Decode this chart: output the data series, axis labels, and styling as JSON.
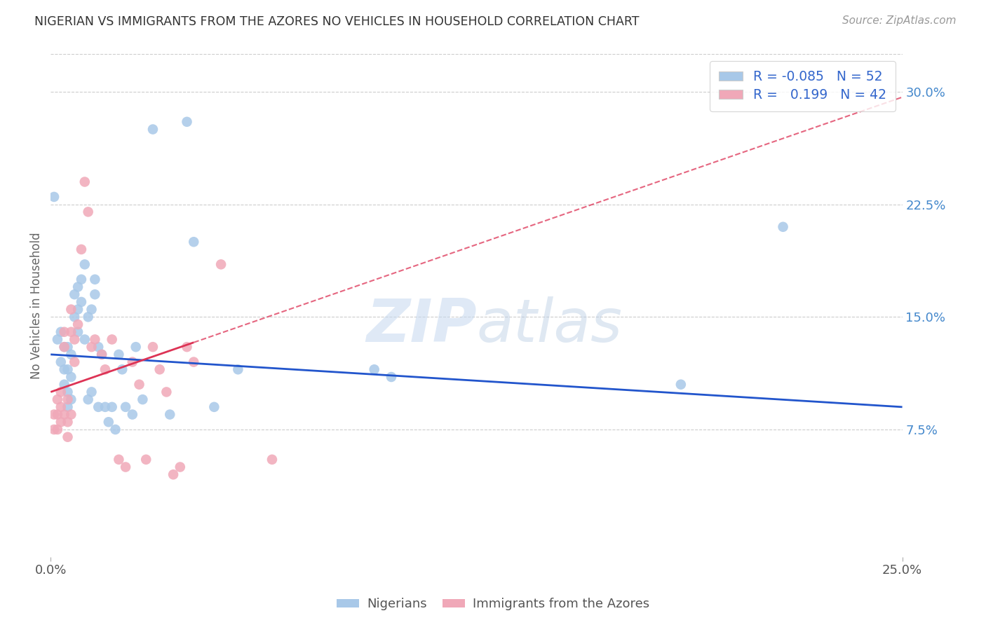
{
  "title": "NIGERIAN VS IMMIGRANTS FROM THE AZORES NO VEHICLES IN HOUSEHOLD CORRELATION CHART",
  "source": "Source: ZipAtlas.com",
  "ylabel": "No Vehicles in Household",
  "ytick_vals": [
    0.075,
    0.15,
    0.225,
    0.3
  ],
  "ytick_labels": [
    "7.5%",
    "15.0%",
    "22.5%",
    "30.0%"
  ],
  "xlim": [
    0.0,
    0.25
  ],
  "ylim": [
    -0.01,
    0.325
  ],
  "legend1_R": "-0.085",
  "legend1_N": "52",
  "legend2_R": "0.199",
  "legend2_N": "42",
  "blue_color": "#a8c8e8",
  "pink_color": "#f0a8b8",
  "blue_line_color": "#2255cc",
  "pink_line_color": "#dd3355",
  "nigerians_x": [
    0.001,
    0.002,
    0.003,
    0.003,
    0.004,
    0.004,
    0.004,
    0.005,
    0.005,
    0.005,
    0.005,
    0.006,
    0.006,
    0.006,
    0.007,
    0.007,
    0.008,
    0.008,
    0.008,
    0.009,
    0.009,
    0.01,
    0.01,
    0.011,
    0.011,
    0.012,
    0.012,
    0.013,
    0.013,
    0.014,
    0.014,
    0.015,
    0.016,
    0.017,
    0.018,
    0.019,
    0.02,
    0.021,
    0.022,
    0.024,
    0.025,
    0.027,
    0.03,
    0.035,
    0.04,
    0.042,
    0.048,
    0.055,
    0.095,
    0.1,
    0.185,
    0.215
  ],
  "nigerians_y": [
    0.23,
    0.135,
    0.14,
    0.12,
    0.13,
    0.115,
    0.105,
    0.13,
    0.115,
    0.1,
    0.09,
    0.125,
    0.11,
    0.095,
    0.165,
    0.15,
    0.17,
    0.155,
    0.14,
    0.175,
    0.16,
    0.185,
    0.135,
    0.15,
    0.095,
    0.155,
    0.1,
    0.175,
    0.165,
    0.13,
    0.09,
    0.125,
    0.09,
    0.08,
    0.09,
    0.075,
    0.125,
    0.115,
    0.09,
    0.085,
    0.13,
    0.095,
    0.275,
    0.085,
    0.28,
    0.2,
    0.09,
    0.115,
    0.115,
    0.11,
    0.105,
    0.21
  ],
  "azores_x": [
    0.001,
    0.001,
    0.002,
    0.002,
    0.002,
    0.003,
    0.003,
    0.003,
    0.004,
    0.004,
    0.004,
    0.005,
    0.005,
    0.005,
    0.006,
    0.006,
    0.006,
    0.007,
    0.007,
    0.008,
    0.009,
    0.01,
    0.011,
    0.012,
    0.013,
    0.015,
    0.016,
    0.018,
    0.02,
    0.022,
    0.024,
    0.026,
    0.028,
    0.03,
    0.032,
    0.034,
    0.036,
    0.038,
    0.04,
    0.042,
    0.05,
    0.065
  ],
  "azores_y": [
    0.085,
    0.075,
    0.095,
    0.085,
    0.075,
    0.1,
    0.09,
    0.08,
    0.14,
    0.13,
    0.085,
    0.095,
    0.08,
    0.07,
    0.155,
    0.14,
    0.085,
    0.135,
    0.12,
    0.145,
    0.195,
    0.24,
    0.22,
    0.13,
    0.135,
    0.125,
    0.115,
    0.135,
    0.055,
    0.05,
    0.12,
    0.105,
    0.055,
    0.13,
    0.115,
    0.1,
    0.045,
    0.05,
    0.13,
    0.12,
    0.185,
    0.055
  ],
  "watermark_zip": "ZIP",
  "watermark_atlas": "atlas",
  "background_color": "#ffffff",
  "grid_color": "#cccccc"
}
